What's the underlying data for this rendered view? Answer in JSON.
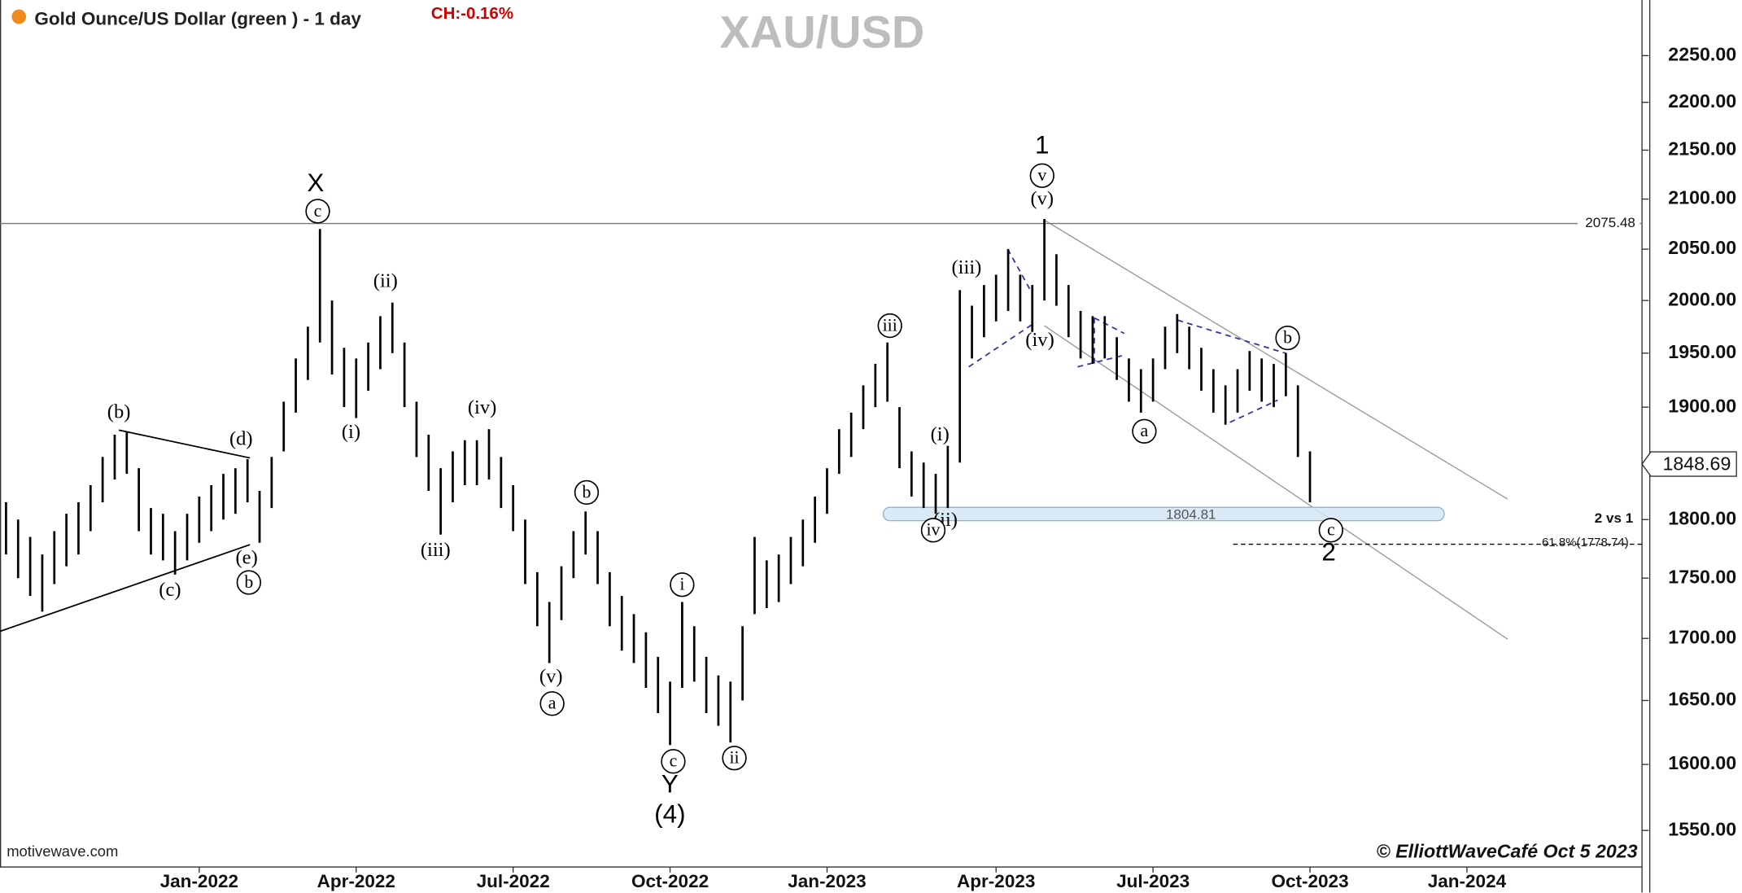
{
  "header": {
    "title": "Gold Ounce/US Dollar (green ) - 1 day",
    "change": "CH:-0.16%",
    "watermark": "XAU/USD"
  },
  "chart_data": {
    "type": "hilo",
    "log_scale": true,
    "color": "#000000",
    "categories": [
      null,
      null,
      null,
      null,
      null,
      null,
      null,
      null,
      null,
      null,
      null,
      null,
      null,
      null,
      null,
      null,
      "Jan-2022",
      null,
      null,
      null,
      null,
      null,
      null,
      null,
      null,
      null,
      null,
      null,
      null,
      "Apr-2022",
      null,
      null,
      null,
      null,
      null,
      null,
      null,
      null,
      null,
      null,
      null,
      null,
      "Jul-2022",
      null,
      null,
      null,
      null,
      null,
      null,
      null,
      null,
      null,
      null,
      null,
      null,
      "Oct-2022",
      null,
      null,
      null,
      null,
      null,
      null,
      null,
      null,
      null,
      null,
      null,
      null,
      "Jan-2023",
      null,
      null,
      null,
      null,
      null,
      null,
      null,
      null,
      null,
      null,
      null,
      null,
      null,
      "Apr-2023",
      null,
      null,
      null,
      null,
      null,
      null,
      null,
      null,
      null,
      null,
      null,
      null,
      "Jul-2023",
      null,
      null,
      null,
      null,
      null,
      null,
      null,
      null,
      null,
      null,
      null,
      null,
      "Oct-2023",
      null,
      null,
      null,
      null,
      null,
      null,
      null,
      null,
      null,
      null,
      null,
      null,
      "Jan-2024",
      null,
      null,
      null,
      null,
      null,
      null,
      null,
      null,
      null,
      null,
      null,
      null,
      null,
      null
    ],
    "high": [
      1815,
      1800,
      1785,
      1770,
      1790,
      1805,
      1815,
      1830,
      1855,
      1875,
      1877,
      1845,
      1810,
      1805,
      1790,
      1805,
      1820,
      1830,
      1840,
      1845,
      1853,
      1825,
      1855,
      1905,
      1945,
      1975,
      2070,
      2000,
      1955,
      1945,
      1960,
      1985,
      1998,
      1960,
      1905,
      1875,
      1845,
      1860,
      1870,
      1870,
      1880,
      1855,
      1830,
      1800,
      1755,
      1730,
      1760,
      1790,
      1807,
      1790,
      1755,
      1735,
      1720,
      1705,
      1685,
      1665,
      1730,
      1710,
      1685,
      1670,
      1665,
      1710,
      1785,
      1765,
      1770,
      1785,
      1800,
      1820,
      1845,
      1880,
      1895,
      1920,
      1940,
      1960,
      1900,
      1860,
      1850,
      1840,
      1865,
      2010,
      1995,
      2015,
      2025,
      2050,
      2025,
      2015,
      2080,
      2045,
      2015,
      1990,
      1985,
      1985,
      1965,
      1945,
      1935,
      1945,
      1975,
      1987,
      1975,
      1955,
      1935,
      1920,
      1935,
      1952,
      1945,
      1940,
      1950,
      1920,
      1860,
      null,
      null,
      null,
      null,
      null,
      null,
      null,
      null,
      null,
      null,
      null,
      null,
      null,
      null,
      null,
      null,
      null,
      null,
      null,
      null,
      null,
      null,
      null,
      null,
      null,
      null,
      null
    ],
    "low": [
      1770,
      1750,
      1735,
      1722,
      1745,
      1760,
      1770,
      1790,
      1815,
      1835,
      1840,
      1790,
      1770,
      1765,
      1753,
      1765,
      1780,
      1790,
      1800,
      1805,
      1815,
      1780,
      1810,
      1860,
      1895,
      1925,
      1960,
      1930,
      1900,
      1890,
      1915,
      1935,
      1950,
      1900,
      1855,
      1825,
      1787,
      1815,
      1830,
      1830,
      1835,
      1810,
      1790,
      1745,
      1710,
      1680,
      1715,
      1750,
      1770,
      1745,
      1710,
      1690,
      1680,
      1660,
      1640,
      1615,
      1660,
      1665,
      1640,
      1630,
      1617,
      1650,
      1720,
      1725,
      1730,
      1745,
      1760,
      1780,
      1805,
      1840,
      1855,
      1880,
      1900,
      1905,
      1845,
      1820,
      1810,
      1805,
      1810,
      1850,
      1945,
      1965,
      1980,
      1990,
      1980,
      1970,
      2000,
      1995,
      1965,
      1945,
      1940,
      1945,
      1925,
      1905,
      1895,
      1905,
      1935,
      1950,
      1935,
      1915,
      1895,
      1884,
      1895,
      1915,
      1905,
      1900,
      1910,
      1855,
      1815,
      null,
      null,
      null,
      null,
      null,
      null,
      null,
      null,
      null,
      null,
      null,
      null,
      null,
      null,
      null,
      null,
      null,
      null,
      null,
      null,
      null,
      null,
      null,
      null,
      null,
      null,
      null
    ],
    "ylim": [
      1523,
      2311
    ],
    "yticks": [
      {
        "value": 1550,
        "label": "1550.00"
      },
      {
        "value": 1600,
        "label": "1600.00"
      },
      {
        "value": 1650,
        "label": "1650.00"
      },
      {
        "value": 1700,
        "label": "1700.00"
      },
      {
        "value": 1750,
        "label": "1750.00"
      },
      {
        "value": 1800,
        "label": "1800.00"
      },
      {
        "value": 1850,
        "label": "1850.00"
      },
      {
        "value": 1900,
        "label": "1900.00"
      },
      {
        "value": 1950,
        "label": "1950.00"
      },
      {
        "value": 2000,
        "label": "2000.00"
      },
      {
        "value": 2050,
        "label": "2050.00"
      },
      {
        "value": 2100,
        "label": "2100.00"
      },
      {
        "value": 2150,
        "label": "2150.00"
      },
      {
        "value": 2200,
        "label": "2200.00"
      },
      {
        "value": 2250,
        "label": "2250.00"
      }
    ],
    "resistance": 2075.48,
    "support_zone": 1804.81,
    "fib_level": {
      "value": 1778.74,
      "label": "61.8%(1778.74)"
    },
    "last_price": 1848.69,
    "note": "2 vs 1",
    "annotations": [
      "(b)",
      "(d)",
      "(c)",
      "(e)",
      "X",
      "(ii)",
      "(i)",
      "(iv)",
      "(iii)",
      "(v)",
      "Y",
      "(4)",
      "1",
      "(v)",
      "(iii)",
      "(iv)",
      "(i)",
      "(ii)",
      "2",
      "c",
      "b",
      "a",
      "b",
      "c",
      "i",
      "ii",
      "iii",
      "iv",
      "v",
      "a",
      "b",
      "c"
    ]
  },
  "footer": {
    "source": "motivewave.com",
    "copyright": "© ElliottWaveCafé Oct 5 2023"
  }
}
